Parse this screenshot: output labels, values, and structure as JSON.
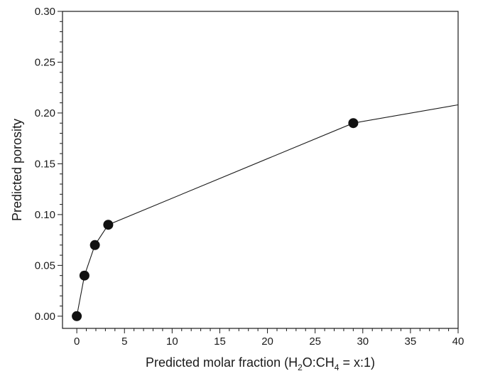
{
  "chart_data": {
    "type": "line",
    "title": "",
    "xlabel": {
      "parts": [
        {
          "text": "Predicted molar fraction (H"
        },
        {
          "text": "2",
          "sub": true
        },
        {
          "text": "O:CH"
        },
        {
          "text": "4",
          "sub": true
        },
        {
          "text": " = x:1)"
        }
      ]
    },
    "ylabel": "Predicted porosity",
    "xlim": [
      -1.5,
      40
    ],
    "ylim": [
      -0.012,
      0.3
    ],
    "xticks": [
      "0",
      "5",
      "10",
      "15",
      "20",
      "25",
      "30",
      "35",
      "40"
    ],
    "yticks": [
      "0.00",
      "0.05",
      "0.10",
      "0.15",
      "0.20",
      "0.25",
      "0.30"
    ],
    "grid": false,
    "series": [
      {
        "markers": [
          {
            "x": 0.0,
            "y": 0.0
          },
          {
            "x": 0.8,
            "y": 0.04
          },
          {
            "x": 1.9,
            "y": 0.07
          },
          {
            "x": 3.3,
            "y": 0.09
          },
          {
            "x": 29.0,
            "y": 0.19
          }
        ],
        "line": [
          {
            "x": 0.0,
            "y": 0.0
          },
          {
            "x": 0.8,
            "y": 0.04
          },
          {
            "x": 1.9,
            "y": 0.07
          },
          {
            "x": 3.3,
            "y": 0.09
          },
          {
            "x": 29.0,
            "y": 0.19
          },
          {
            "x": 40.0,
            "y": 0.208
          }
        ]
      }
    ],
    "colors": {
      "line": "#1a1a1a",
      "marker": "#111111",
      "axis": "#1a1a1a"
    }
  }
}
